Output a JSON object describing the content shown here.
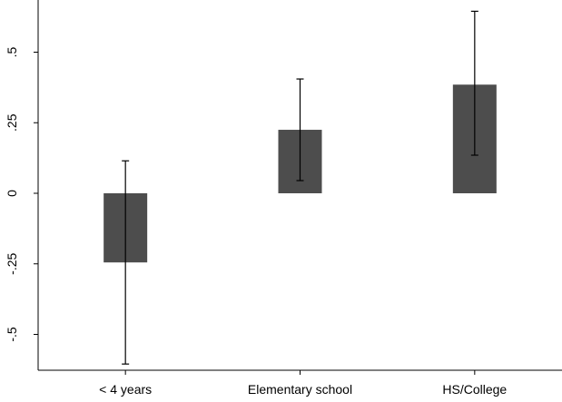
{
  "chart_data": {
    "type": "bar",
    "title": "",
    "xlabel": "",
    "ylabel": "",
    "categories": [
      "< 4 years",
      "Elementary school",
      "HS/College"
    ],
    "values": [
      -0.245,
      0.225,
      0.385
    ],
    "error_low": [
      -0.605,
      0.045,
      0.135
    ],
    "error_high": [
      0.115,
      0.405,
      0.645
    ],
    "yticks": [
      0.5,
      0.25,
      0,
      -0.25,
      -0.5
    ],
    "ytick_labels": [
      ".5",
      ".25",
      "0",
      "-.25",
      "-.5"
    ],
    "ylim": [
      -0.62,
      0.67
    ],
    "grid": false,
    "colors": {
      "bar": "#4d4d4d",
      "error_bar": "#000000"
    }
  }
}
